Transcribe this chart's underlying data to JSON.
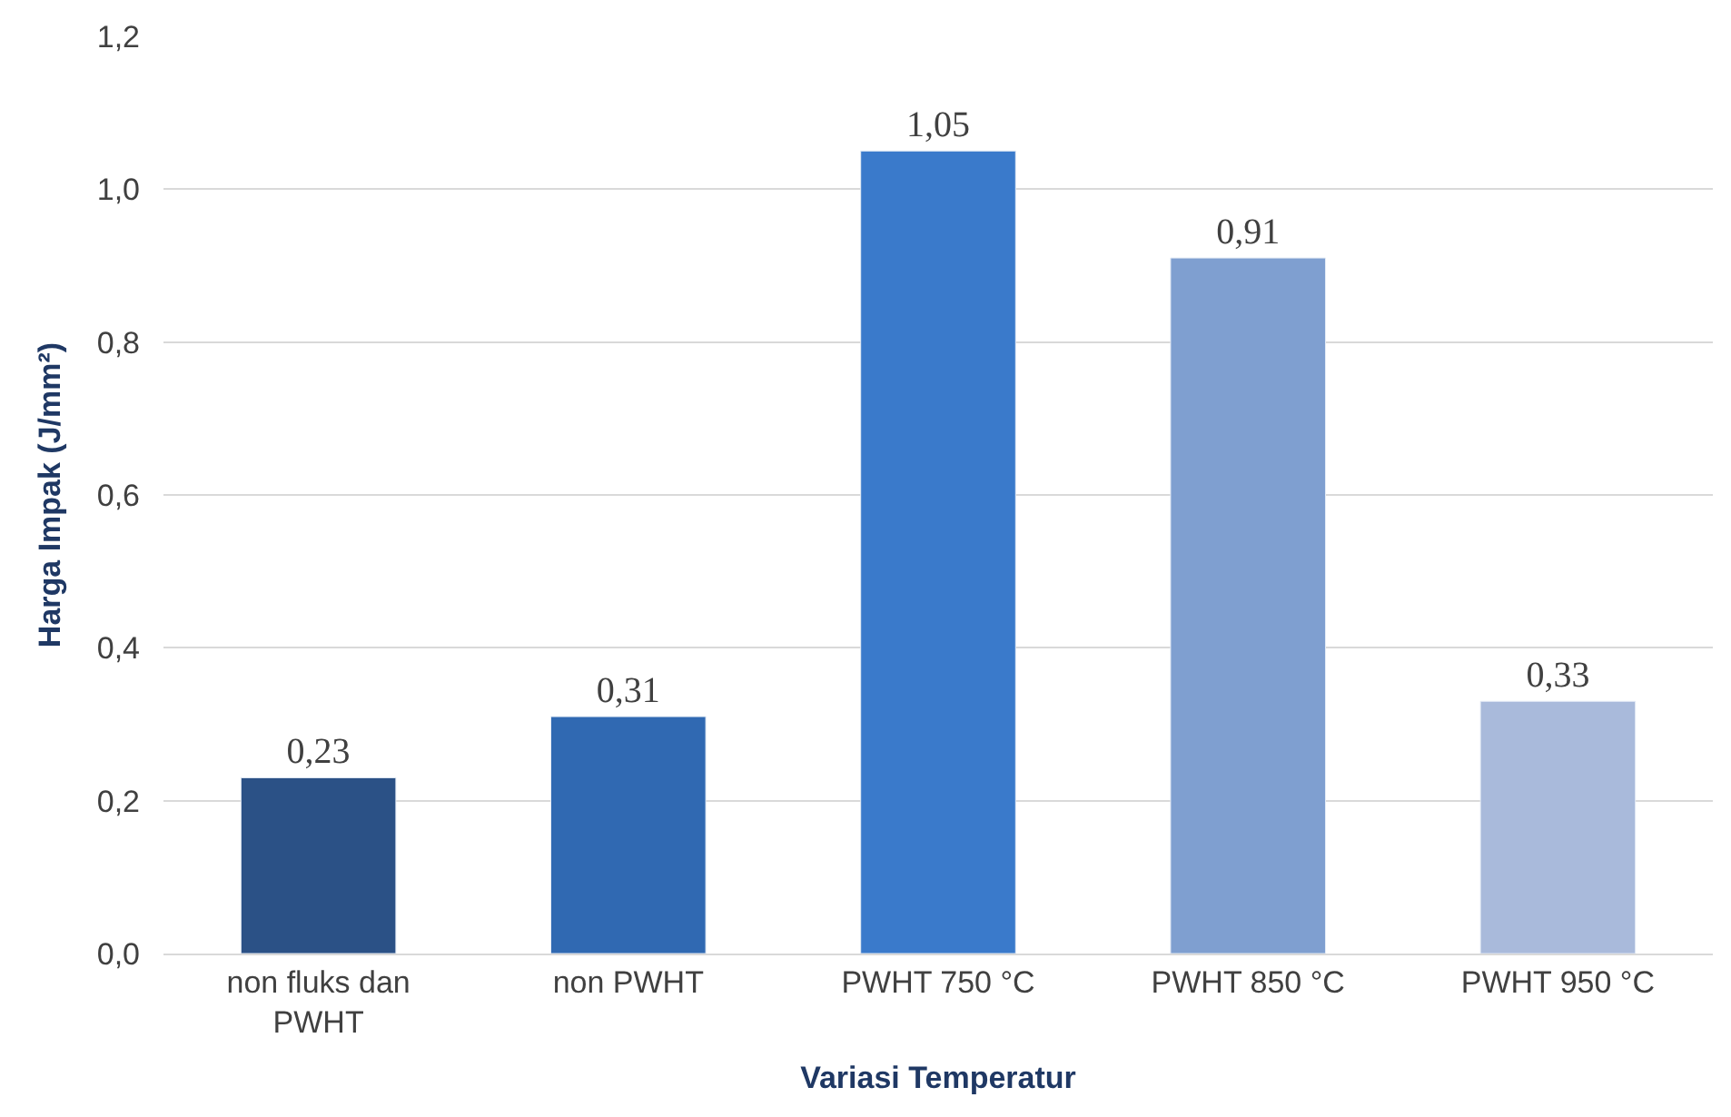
{
  "chart_data": {
    "type": "bar",
    "xlabel": "Variasi Temperatur",
    "ylabel": "Harga Impak (J/mm²)",
    "categories": [
      "non fluks dan PWHT",
      "non PWHT",
      "PWHT 750 °C",
      "PWHT 850 °C",
      "PWHT 950 °C"
    ],
    "values": [
      0.23,
      0.31,
      1.05,
      0.91,
      0.33
    ],
    "colors": [
      "#2b5186",
      "#3069b2",
      "#3a7acb",
      "#7f9fd0",
      "#a9badb"
    ],
    "value_labels": [
      "0,23",
      "0,31",
      "1,05",
      "0,91",
      "0,33"
    ],
    "ylim": [
      0,
      1.2
    ],
    "yticks": [
      {
        "value": 0,
        "label": "0,0"
      },
      {
        "value": 0.2,
        "label": "0,2"
      },
      {
        "value": 0.4,
        "label": "0,4"
      },
      {
        "value": 0.6,
        "label": "0,6"
      },
      {
        "value": 0.8,
        "label": "0,8"
      },
      {
        "value": 1.0,
        "label": "1,0"
      },
      {
        "value": 1.2,
        "label": "1,2"
      }
    ],
    "grid": "y"
  }
}
